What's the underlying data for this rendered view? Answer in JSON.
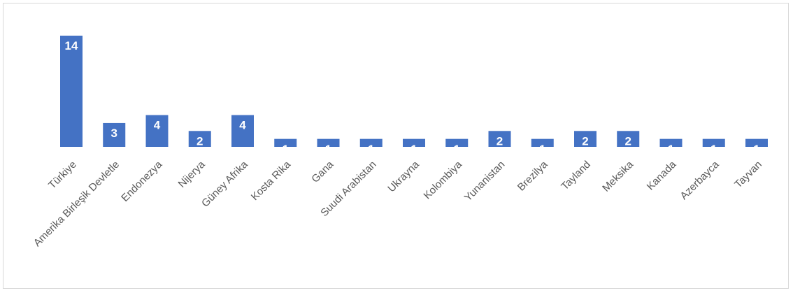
{
  "chart_data": {
    "type": "bar",
    "categories": [
      "Türkiye",
      "Amerika Birleşik Devletle",
      "Endonezya",
      "Nijerya",
      "Güney Afrika",
      "Kosta Rika",
      "Gana",
      "Suudi Arabistan",
      "Ukrayna",
      "Kolombiya",
      "Yunanistan",
      "Brezilya",
      "Tayland",
      "Meksika",
      "Kanada",
      "Azerbayca",
      "Tayvan"
    ],
    "values": [
      14,
      3,
      4,
      2,
      4,
      1,
      1,
      1,
      1,
      1,
      2,
      1,
      2,
      2,
      1,
      1,
      1
    ],
    "data_labels": [
      "14",
      "3",
      "4",
      "2",
      "4",
      "1",
      "1",
      "1",
      "1",
      "1",
      "2",
      "1",
      "2",
      "2",
      "1",
      "1",
      "1"
    ],
    "title": "",
    "xlabel": "",
    "ylabel": "",
    "ylim": [
      0,
      14
    ],
    "grid": false,
    "legend": "none",
    "bar_color": "#4472c4",
    "label_color": "#ffffff",
    "category_label_color": "#595959"
  }
}
